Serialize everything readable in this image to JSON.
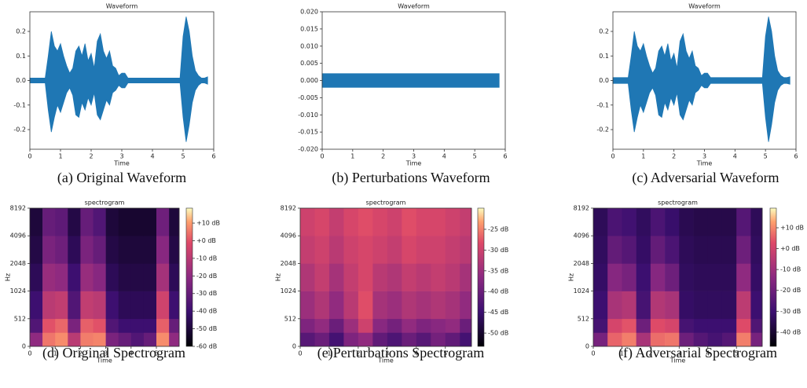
{
  "chart_data": [
    {
      "type": "area",
      "title": "Waveform",
      "xlabel": "Time",
      "caption": "(a) Original Waveform",
      "color": "#1f77b4",
      "x": [
        0,
        0.1,
        0.2,
        0.3,
        0.4,
        0.5,
        0.6,
        0.7,
        0.8,
        0.9,
        1.0,
        1.1,
        1.2,
        1.3,
        1.4,
        1.5,
        1.6,
        1.7,
        1.8,
        1.9,
        2.0,
        2.1,
        2.2,
        2.3,
        2.4,
        2.5,
        2.6,
        2.7,
        2.8,
        2.9,
        3.0,
        3.1,
        3.2,
        3.3,
        3.4,
        3.5,
        3.6,
        3.7,
        3.8,
        3.9,
        4.0,
        4.1,
        4.2,
        4.3,
        4.4,
        4.5,
        4.6,
        4.7,
        4.8,
        4.9,
        5.0,
        5.1,
        5.2,
        5.3,
        5.4,
        5.5,
        5.6,
        5.7,
        5.8
      ],
      "upper": [
        0.01,
        0.01,
        0.01,
        0.01,
        0.01,
        0.01,
        0.1,
        0.2,
        0.14,
        0.12,
        0.15,
        0.1,
        0.06,
        0.03,
        0.05,
        0.12,
        0.14,
        0.1,
        0.15,
        0.08,
        0.11,
        0.05,
        0.16,
        0.19,
        0.12,
        0.09,
        0.12,
        0.06,
        0.05,
        0.02,
        0.03,
        0.03,
        0.01,
        0.01,
        0.01,
        0.01,
        0.01,
        0.01,
        0.01,
        0.01,
        0.01,
        0.01,
        0.01,
        0.01,
        0.01,
        0.01,
        0.01,
        0.01,
        0.01,
        0.01,
        0.18,
        0.26,
        0.2,
        0.1,
        0.04,
        0.02,
        0.01,
        0.01,
        0.015
      ],
      "lower": [
        -0.01,
        -0.01,
        -0.01,
        -0.01,
        -0.01,
        -0.01,
        -0.12,
        -0.21,
        -0.15,
        -0.1,
        -0.13,
        -0.09,
        -0.05,
        -0.03,
        -0.06,
        -0.14,
        -0.15,
        -0.09,
        -0.12,
        -0.07,
        -0.1,
        -0.05,
        -0.14,
        -0.16,
        -0.12,
        -0.08,
        -0.1,
        -0.05,
        -0.04,
        -0.02,
        -0.03,
        -0.03,
        -0.01,
        -0.01,
        -0.01,
        -0.01,
        -0.01,
        -0.01,
        -0.01,
        -0.01,
        -0.01,
        -0.01,
        -0.01,
        -0.01,
        -0.01,
        -0.01,
        -0.01,
        -0.01,
        -0.01,
        -0.01,
        -0.15,
        -0.25,
        -0.18,
        -0.09,
        -0.04,
        -0.02,
        -0.01,
        -0.01,
        -0.015
      ],
      "xlim": [
        0,
        6
      ],
      "xticks": [
        0,
        1,
        2,
        3,
        4,
        5,
        6
      ],
      "ylim": [
        -0.28,
        0.28
      ],
      "yticks": [
        -0.2,
        -0.1,
        {
          "value": 0,
          "label": "0.0"
        },
        0.1,
        0.2
      ]
    },
    {
      "type": "area",
      "title": "Waveform",
      "xlabel": "Time",
      "caption": "(b) Perturbations Waveform",
      "color": "#1f77b4",
      "x": [
        0,
        5.8
      ],
      "upper": [
        0.002,
        0.002
      ],
      "lower": [
        -0.002,
        -0.002
      ],
      "xlim": [
        0,
        6
      ],
      "xticks": [
        0,
        1,
        2,
        3,
        4,
        5,
        6
      ],
      "ylim": [
        -0.02,
        0.02
      ],
      "yticks": [
        {
          "value": -0.02,
          "label": "-0.020"
        },
        {
          "value": -0.015,
          "label": "-0.015"
        },
        {
          "value": -0.01,
          "label": "-0.010"
        },
        {
          "value": -0.005,
          "label": "-0.005"
        },
        {
          "value": 0,
          "label": "0.000"
        },
        {
          "value": 0.005,
          "label": "0.005"
        },
        {
          "value": 0.01,
          "label": "0.010"
        },
        {
          "value": 0.015,
          "label": "0.015"
        },
        {
          "value": 0.02,
          "label": "0.020"
        }
      ]
    },
    {
      "type": "area",
      "title": "Waveform",
      "xlabel": "Time",
      "caption": "(c) Adversarial Waveform",
      "color": "#1f77b4",
      "x": [
        0,
        0.1,
        0.2,
        0.3,
        0.4,
        0.5,
        0.6,
        0.7,
        0.8,
        0.9,
        1.0,
        1.1,
        1.2,
        1.3,
        1.4,
        1.5,
        1.6,
        1.7,
        1.8,
        1.9,
        2.0,
        2.1,
        2.2,
        2.3,
        2.4,
        2.5,
        2.6,
        2.7,
        2.8,
        2.9,
        3.0,
        3.1,
        3.2,
        3.3,
        3.4,
        3.5,
        3.6,
        3.7,
        3.8,
        3.9,
        4.0,
        4.1,
        4.2,
        4.3,
        4.4,
        4.5,
        4.6,
        4.7,
        4.8,
        4.9,
        5.0,
        5.1,
        5.2,
        5.3,
        5.4,
        5.5,
        5.6,
        5.7,
        5.8
      ],
      "upper": [
        0.012,
        0.012,
        0.012,
        0.012,
        0.012,
        0.012,
        0.1,
        0.2,
        0.14,
        0.12,
        0.15,
        0.1,
        0.06,
        0.03,
        0.05,
        0.12,
        0.14,
        0.1,
        0.15,
        0.08,
        0.11,
        0.05,
        0.16,
        0.19,
        0.12,
        0.09,
        0.12,
        0.06,
        0.05,
        0.02,
        0.03,
        0.03,
        0.012,
        0.012,
        0.012,
        0.012,
        0.012,
        0.012,
        0.012,
        0.012,
        0.012,
        0.012,
        0.012,
        0.012,
        0.012,
        0.012,
        0.012,
        0.012,
        0.012,
        0.012,
        0.18,
        0.26,
        0.2,
        0.1,
        0.04,
        0.02,
        0.012,
        0.012,
        0.015
      ],
      "lower": [
        -0.012,
        -0.012,
        -0.012,
        -0.012,
        -0.012,
        -0.012,
        -0.12,
        -0.21,
        -0.15,
        -0.1,
        -0.13,
        -0.09,
        -0.05,
        -0.03,
        -0.06,
        -0.14,
        -0.15,
        -0.09,
        -0.12,
        -0.07,
        -0.1,
        -0.05,
        -0.14,
        -0.16,
        -0.12,
        -0.08,
        -0.1,
        -0.05,
        -0.04,
        -0.02,
        -0.03,
        -0.03,
        -0.012,
        -0.012,
        -0.012,
        -0.012,
        -0.012,
        -0.012,
        -0.012,
        -0.012,
        -0.012,
        -0.012,
        -0.012,
        -0.012,
        -0.012,
        -0.012,
        -0.012,
        -0.012,
        -0.012,
        -0.012,
        -0.15,
        -0.25,
        -0.18,
        -0.09,
        -0.04,
        -0.02,
        -0.012,
        -0.012,
        -0.015
      ],
      "xlim": [
        0,
        6
      ],
      "xticks": [
        0,
        1,
        2,
        3,
        4,
        5,
        6
      ],
      "ylim": [
        -0.28,
        0.28
      ],
      "yticks": [
        -0.2,
        -0.1,
        {
          "value": 0,
          "label": "0.0"
        },
        0.1,
        0.2
      ]
    },
    {
      "type": "heatmap",
      "title": "spectrogram",
      "xlabel": "Time",
      "ylabel": "Hz",
      "caption": "(d) Original Spectrogram",
      "x_edges": [
        0,
        0.5,
        1,
        1.5,
        2,
        2.5,
        3,
        3.5,
        4,
        4.5,
        5,
        5.5,
        5.9
      ],
      "y_edges": [
        0,
        256,
        512,
        1024,
        2048,
        4096,
        8192
      ],
      "yscale": "symlog",
      "linthresh": 512,
      "z": [
        [
          -20,
          5,
          8,
          -10,
          6,
          7,
          -25,
          -30,
          -35,
          -30,
          8,
          -20
        ],
        [
          -35,
          0,
          3,
          -25,
          2,
          0,
          -35,
          -40,
          -40,
          -40,
          2,
          -30
        ],
        [
          -40,
          -10,
          -8,
          -35,
          -8,
          -10,
          -40,
          -45,
          -45,
          -45,
          -5,
          -40
        ],
        [
          -45,
          -18,
          -20,
          -40,
          -18,
          -22,
          -45,
          -48,
          -48,
          -48,
          -15,
          -45
        ],
        [
          -48,
          -25,
          -28,
          -45,
          -25,
          -30,
          -48,
          -50,
          -50,
          -50,
          -22,
          -48
        ],
        [
          -50,
          -30,
          -32,
          -48,
          -30,
          -35,
          -50,
          -52,
          -52,
          -52,
          -28,
          -50
        ]
      ],
      "xlim": [
        0,
        5.9
      ],
      "xticks": [
        0,
        1,
        2,
        3,
        4,
        5
      ],
      "ylim": [
        0,
        8192
      ],
      "yticks": [
        0,
        512,
        1024,
        2048,
        4096,
        8192
      ],
      "clim": [
        -60,
        18.5
      ],
      "cticks": [
        {
          "value": 10,
          "label": "+10 dB"
        },
        {
          "value": 0,
          "label": "+0 dB"
        },
        {
          "value": -10,
          "label": "-10 dB"
        },
        {
          "value": -20,
          "label": "-20 dB"
        },
        {
          "value": -30,
          "label": "-30 dB"
        },
        {
          "value": -40,
          "label": "-40 dB"
        },
        {
          "value": -50,
          "label": "-50 dB"
        },
        {
          "value": -60,
          "label": "-60 dB"
        }
      ]
    },
    {
      "type": "heatmap",
      "title": "spectrogram",
      "xlabel": "Time",
      "ylabel": "Hz",
      "caption": "(e)Perturbations Spectrogram",
      "x_edges": [
        0,
        0.5,
        1,
        1.5,
        2,
        2.5,
        3,
        3.5,
        4,
        4.5,
        5,
        5.5,
        5.9
      ],
      "y_edges": [
        0,
        256,
        512,
        1024,
        2048,
        4096,
        8192
      ],
      "yscale": "symlog",
      "linthresh": 512,
      "z": [
        [
          -42,
          -40,
          -44,
          -38,
          -36,
          -41,
          -43,
          -40,
          -42,
          -39,
          -41,
          -44
        ],
        [
          -38,
          -36,
          -40,
          -35,
          -30,
          -37,
          -39,
          -36,
          -38,
          -37,
          -36,
          -40
        ],
        [
          -35,
          -33,
          -36,
          -32,
          -28,
          -34,
          -35,
          -33,
          -34,
          -33,
          -34,
          -36
        ],
        [
          -33,
          -31,
          -34,
          -31,
          -29,
          -32,
          -33,
          -31,
          -32,
          -31,
          -32,
          -34
        ],
        [
          -31,
          -30,
          -32,
          -30,
          -29,
          -30,
          -31,
          -29,
          -30,
          -30,
          -31,
          -32
        ],
        [
          -30,
          -29,
          -31,
          -29,
          -28,
          -29,
          -30,
          -28,
          -29,
          -29,
          -30,
          -31
        ]
      ],
      "xlim": [
        0,
        5.9
      ],
      "xticks": [
        0,
        1,
        2,
        3,
        4,
        5
      ],
      "ylim": [
        0,
        8192
      ],
      "yticks": [
        0,
        512,
        1024,
        2048,
        4096,
        8192
      ],
      "clim": [
        -53.2,
        -19.9
      ],
      "cticks": [
        {
          "value": -25,
          "label": "-25 dB"
        },
        {
          "value": -30,
          "label": "-30 dB"
        },
        {
          "value": -35,
          "label": "-35 dB"
        },
        {
          "value": -40,
          "label": "-40 dB"
        },
        {
          "value": -45,
          "label": "-45 dB"
        },
        {
          "value": -50,
          "label": "-50 dB"
        }
      ]
    },
    {
      "type": "heatmap",
      "title": "spectrogram",
      "xlabel": "Time",
      "ylabel": "Hz",
      "caption": "(f) Adversarial Spectrogram",
      "x_edges": [
        0,
        0.5,
        1,
        1.5,
        2,
        2.5,
        3,
        3.5,
        4,
        4.5,
        5,
        5.5,
        5.9
      ],
      "y_edges": [
        0,
        256,
        512,
        1024,
        2048,
        4096,
        8192
      ],
      "yscale": "symlog",
      "linthresh": 512,
      "z": [
        [
          -18,
          6,
          9,
          -8,
          7,
          8,
          -20,
          -25,
          -28,
          -25,
          9,
          -18
        ],
        [
          -28,
          1,
          4,
          -20,
          3,
          1,
          -28,
          -30,
          -30,
          -30,
          3,
          -26
        ],
        [
          -30,
          -8,
          -6,
          -28,
          -6,
          -8,
          -32,
          -33,
          -33,
          -33,
          -4,
          -30
        ],
        [
          -32,
          -15,
          -18,
          -30,
          -15,
          -20,
          -33,
          -34,
          -34,
          -34,
          -13,
          -32
        ],
        [
          -33,
          -22,
          -25,
          -32,
          -22,
          -27,
          -34,
          -35,
          -35,
          -35,
          -20,
          -33
        ],
        [
          -34,
          -27,
          -29,
          -33,
          -27,
          -31,
          -35,
          -36,
          -36,
          -36,
          -25,
          -34
        ]
      ],
      "xlim": [
        0,
        5.9
      ],
      "xticks": [
        0,
        1,
        2,
        3,
        4,
        5
      ],
      "ylim": [
        0,
        8192
      ],
      "yticks": [
        0,
        512,
        1024,
        2048,
        4096,
        8192
      ],
      "clim": [
        -46.8,
        19.4
      ],
      "cticks": [
        {
          "value": 10,
          "label": "+10 dB"
        },
        {
          "value": 0,
          "label": "+0 dB"
        },
        {
          "value": -10,
          "label": "-10 dB"
        },
        {
          "value": -20,
          "label": "-20 dB"
        },
        {
          "value": -30,
          "label": "-30 dB"
        },
        {
          "value": -40,
          "label": "-40 dB"
        }
      ]
    }
  ]
}
